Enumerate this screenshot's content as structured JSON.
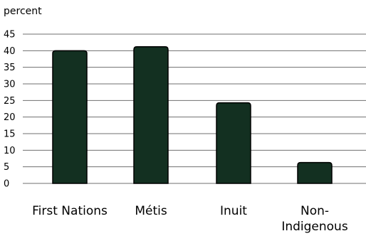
{
  "chart_data": {
    "type": "bar",
    "ylabel": "percent",
    "categories": [
      "First Nations",
      "Métis",
      "Inuit",
      "Non-\nIndigenous"
    ],
    "values": [
      40,
      41.2,
      24.3,
      6.3
    ],
    "ylim": [
      0,
      45
    ],
    "yticks": [
      "0",
      "5",
      "10",
      "15",
      "20",
      "25",
      "30",
      "35",
      "40",
      "45"
    ],
    "grid": true,
    "bar_color": "#133021",
    "bar_edge_color": "#000000",
    "grid_color": "#6f6f6f"
  }
}
